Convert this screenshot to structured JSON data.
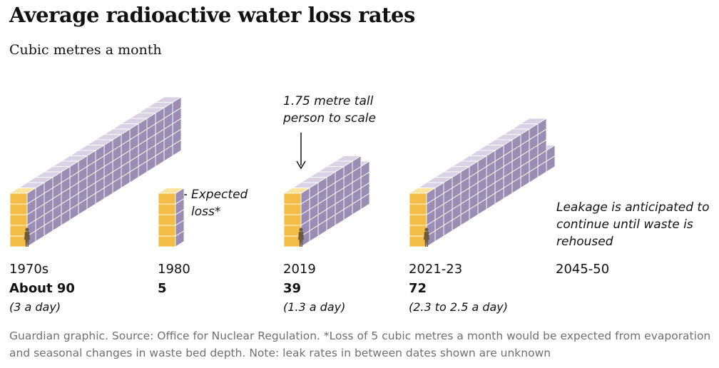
{
  "chart_data": {
    "type": "isotype",
    "title": "Average radioactive water loss rates",
    "subtitle": "Cubic metres a month",
    "categories": [
      "1970s",
      "1980",
      "2019",
      "2021-23",
      "2045-50"
    ],
    "values": [
      90,
      5,
      39,
      72,
      null
    ],
    "value_labels": [
      "About 90",
      "5",
      "39",
      "72",
      null
    ],
    "notes": [
      "(3 a day)",
      null,
      "(1.3 a day)",
      "(2.3 to 2.5 a day)",
      null
    ],
    "annotations": [
      "Expected loss*",
      "1.75 metre tall person to scale",
      "Leakage is anticipated to continue until waste is rehoused"
    ],
    "colors": {
      "front": "#f4bd48",
      "front_top": "#fbe3a0",
      "side": "#998db3",
      "side_top": "#d8d2e4"
    },
    "source": "Guardian graphic. Source: Office for Nuclear Regulation. *Loss of 5 cubic metres a month would be expected from evaporation and seasonal changes in waste bed depth. Note: leak rates in between dates shown are unknown"
  }
}
